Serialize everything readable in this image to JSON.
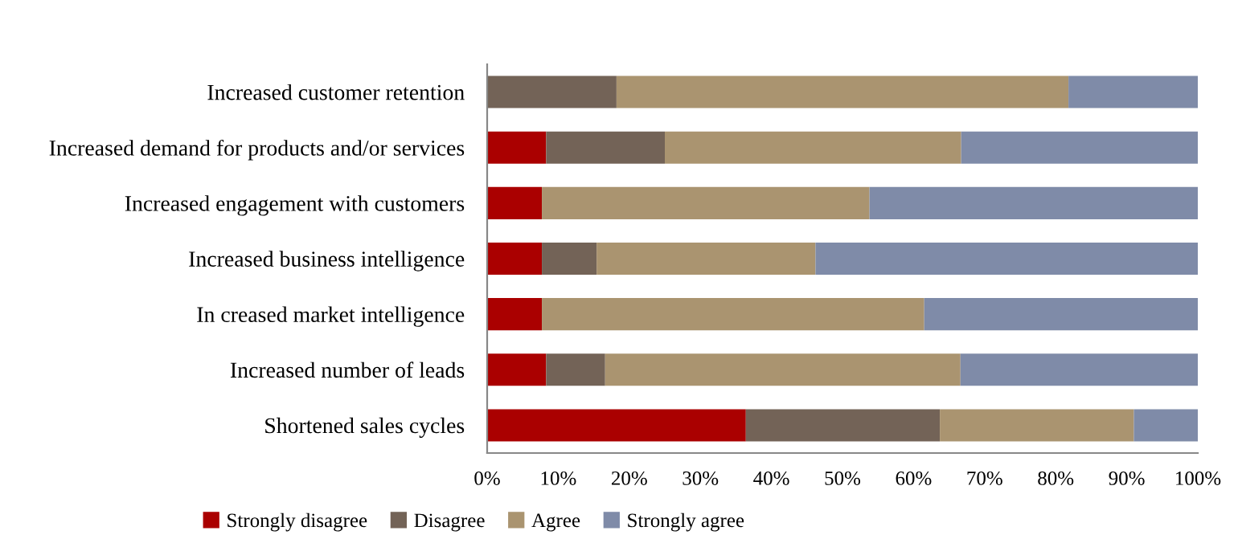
{
  "chart_data": {
    "type": "bar",
    "orientation": "horizontal",
    "stacked": true,
    "categories": [
      "Increased customer retention",
      "Increased demand for products and/or services",
      "Increased engagement with customers",
      "Increased business intelligence",
      "In creased market intelligence",
      "Increased number of leads",
      "Shortened sales cycles"
    ],
    "series": [
      {
        "name": "Strongly disagree",
        "color": "#aa0000",
        "values": [
          0,
          8.3,
          7.7,
          7.7,
          7.7,
          8.3,
          36.4
        ]
      },
      {
        "name": "Disagree",
        "color": "#736357",
        "values": [
          18.2,
          16.7,
          0,
          7.7,
          0,
          8.3,
          27.3
        ]
      },
      {
        "name": "Agree",
        "color": "#aa9470",
        "values": [
          63.6,
          41.7,
          46.1,
          30.8,
          53.8,
          50,
          27.3
        ]
      },
      {
        "name": "Strongly agree",
        "color": "#7f8ba8",
        "values": [
          18.2,
          33.3,
          46.2,
          53.8,
          38.5,
          33.4,
          9.0
        ]
      }
    ],
    "xlim": [
      0,
      100
    ],
    "xticks": [
      {
        "value": 0,
        "label": "0%"
      },
      {
        "value": 10,
        "label": "10%"
      },
      {
        "value": 20,
        "label": "20%"
      },
      {
        "value": 30,
        "label": "30%"
      },
      {
        "value": 40,
        "label": "40%"
      },
      {
        "value": 50,
        "label": "50%"
      },
      {
        "value": 60,
        "label": "60%"
      },
      {
        "value": 70,
        "label": "70%"
      },
      {
        "value": 80,
        "label": "80%"
      },
      {
        "value": 90,
        "label": "90%"
      },
      {
        "value": 100,
        "label": "100%"
      }
    ],
    "grid": false,
    "legend": "bottom"
  }
}
